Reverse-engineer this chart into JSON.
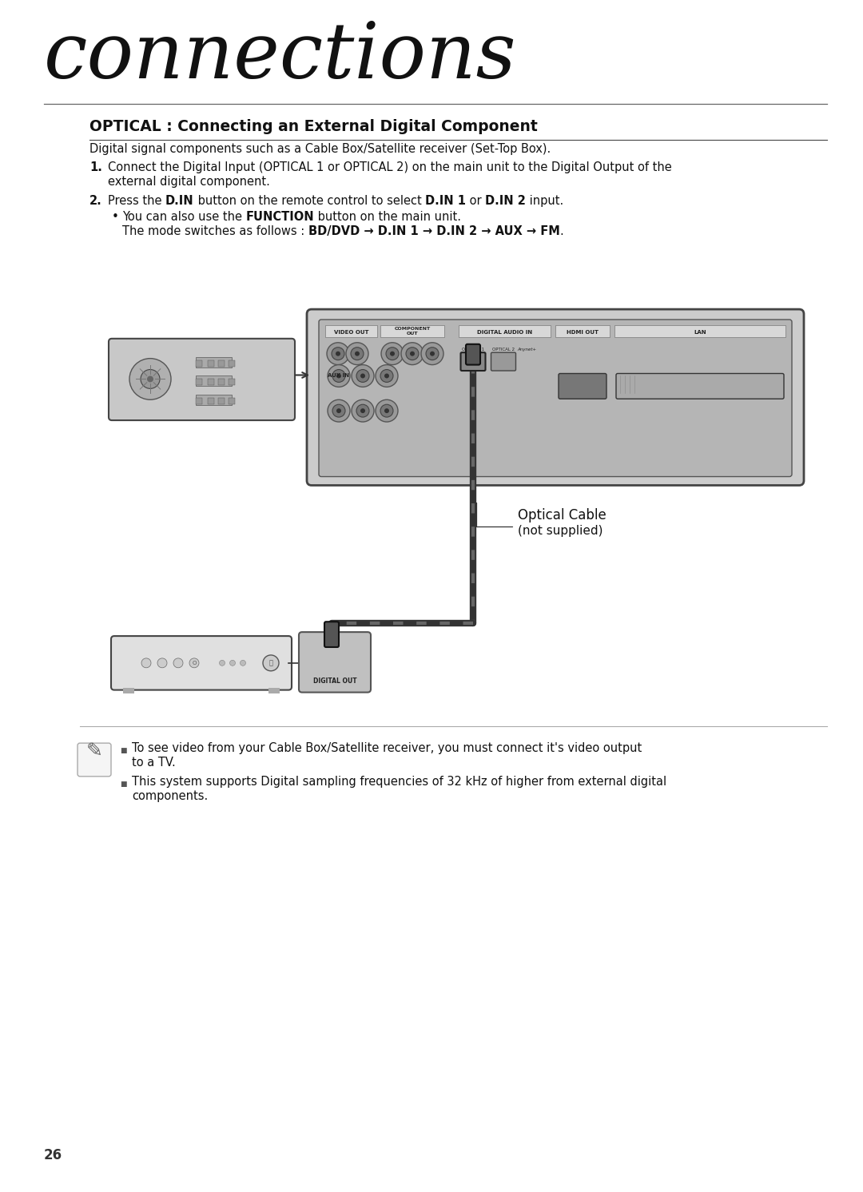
{
  "bg_color": "#ffffff",
  "title_text": "connections",
  "section_title": "OPTICAL : Connecting an External Digital Component",
  "intro_text": "Digital signal components such as a Cable Box/Satellite receiver (Set-Top Box).",
  "step1_label": "1.",
  "step1_text_line1": "Connect the Digital Input (OPTICAL 1 or OPTICAL 2) on the main unit to the Digital Output of the",
  "step1_text_line2": "external digital component.",
  "step2_label": "2.",
  "step2_parts": [
    [
      "Press the ",
      false
    ],
    [
      "D.IN",
      true
    ],
    [
      " button on the remote control to select ",
      false
    ],
    [
      "D.IN 1",
      true
    ],
    [
      " or ",
      false
    ],
    [
      "D.IN 2",
      true
    ],
    [
      " input.",
      false
    ]
  ],
  "bullet_parts": [
    [
      "You can also use the ",
      false
    ],
    [
      "FUNCTION",
      true
    ],
    [
      " button on the main unit.",
      false
    ]
  ],
  "mode_parts": [
    [
      "The mode switches as follows : ",
      false
    ],
    [
      "BD/DVD → D.IN 1 → D.IN 2 → AUX → FM",
      true
    ],
    [
      ".",
      false
    ]
  ],
  "optical_cable_label": "Optical Cable",
  "not_supplied_label": "(not supplied)",
  "note1_text_line1": "To see video from your Cable Box/Satellite receiver, you must connect it's video output",
  "note1_text_line2": "to a TV.",
  "note2_text_line1": "This system supports Digital sampling frequencies of 32 kHz of higher from external digital",
  "note2_text_line2": "components.",
  "page_number": "26",
  "body_color": "#111111",
  "note_line_color": "#aaaaaa"
}
